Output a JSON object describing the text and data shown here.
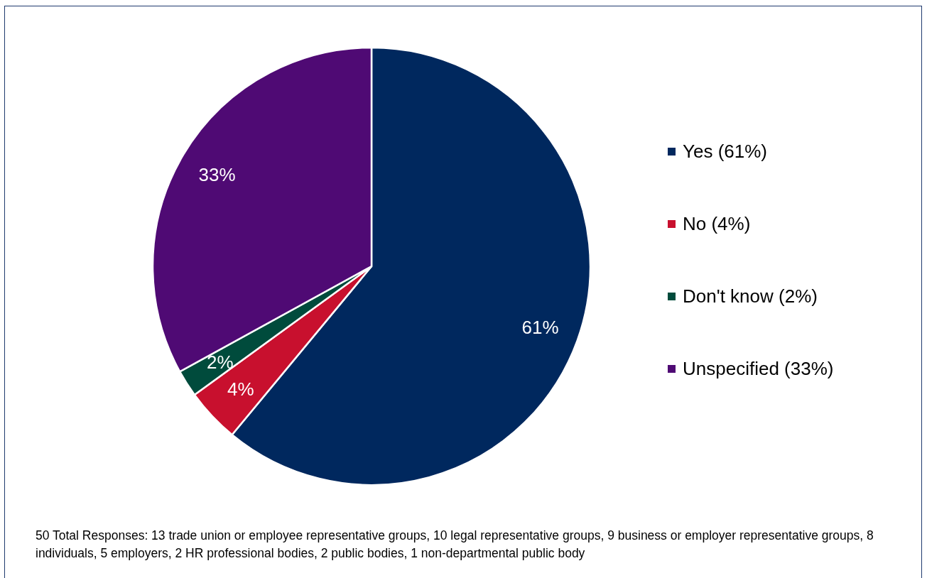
{
  "chart_data": {
    "type": "pie",
    "categories": [
      "Yes (61%)",
      "No (4%)",
      "Don't know (2%)",
      "Unspecified (33%)"
    ],
    "values": [
      61,
      4,
      2,
      33
    ],
    "colors": [
      "#00285e",
      "#c8102e",
      "#004b3c",
      "#4f0a74"
    ],
    "value_labels": [
      "61%",
      "4%",
      "2%",
      "33%"
    ],
    "legend": "right",
    "annotations": [
      "50 Total Responses: 13 trade union or employee representative groups, 10 legal representative groups, 9 business or employer representative groups, 8 individuals, 5 employers, 2 HR professional bodies, 2 public bodies, 1 non-departmental public body"
    ]
  }
}
